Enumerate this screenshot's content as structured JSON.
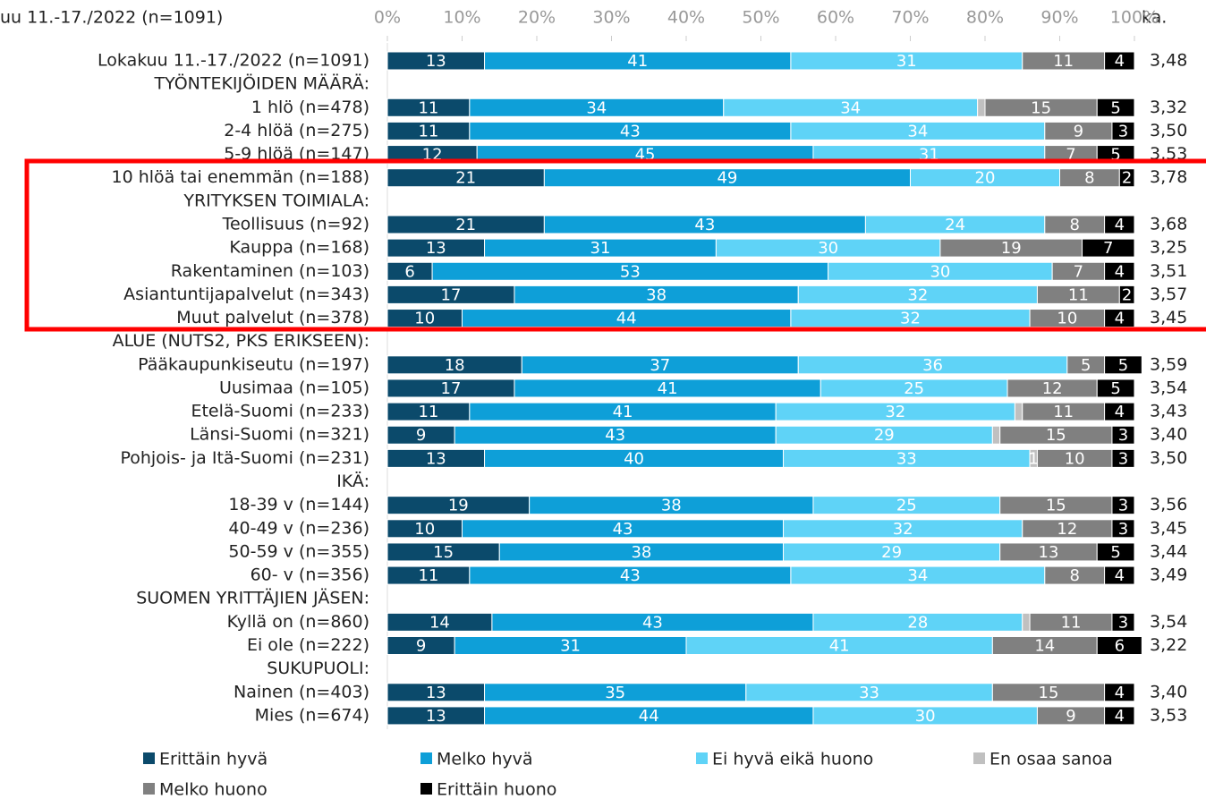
{
  "chart_data": {
    "type": "stacked-bar-horizontal",
    "title": "uu 11.-17./2022 (n=1091)",
    "categories": [
      "Lokakuu 11.-17./2022 (n=1091)",
      "TYÖNTEKIJÖIDEN MÄÄRÄ:",
      "1 hlö (n=478)",
      "2-4 hlöä (n=275)",
      "5-9 hlöä (n=147)",
      "10 hlöä tai enemmän (n=188)",
      "YRITYKSEN TOIMIALA:",
      "Teollisuus (n=92)",
      "Kauppa (n=168)",
      "Rakentaminen (n=103)",
      "Asiantuntijapalvelut (n=343)",
      "Muut palvelut (n=378)",
      "ALUE (NUTS2, PKS ERIKSEEN):",
      "Pääkaupunkiseutu (n=197)",
      "Uusimaa (n=105)",
      "Etelä-Suomi (n=233)",
      "Länsi-Suomi (n=321)",
      "Pohjois- ja Itä-Suomi (n=231)",
      "IKÄ:",
      "18-39 v (n=144)",
      "40-49 v (n=236)",
      "50-59 v (n=355)",
      "60- v (n=356)",
      "SUOMEN YRITTÄJIEN JÄSEN:",
      "Kyllä on (n=860)",
      "Ei ole (n=222)",
      "SUKUPUOLI:",
      "Nainen (n=403)",
      "Mies (n=674)"
    ],
    "series": [
      {
        "name": "Erittäin hyvä",
        "color": "#0b4a6b",
        "values": [
          13,
          null,
          11,
          11,
          12,
          21,
          null,
          21,
          13,
          6,
          17,
          10,
          null,
          18,
          17,
          11,
          9,
          13,
          null,
          19,
          10,
          15,
          11,
          null,
          14,
          9,
          null,
          13,
          13
        ]
      },
      {
        "name": "Melko hyvä",
        "color": "#0e9fd8",
        "values": [
          41,
          null,
          34,
          43,
          45,
          49,
          null,
          43,
          31,
          53,
          38,
          44,
          null,
          37,
          41,
          41,
          43,
          40,
          null,
          38,
          43,
          38,
          43,
          null,
          43,
          31,
          null,
          35,
          44
        ]
      },
      {
        "name": "Ei hyvä eikä huono",
        "color": "#5fd3f7",
        "values": [
          31,
          null,
          34,
          34,
          31,
          20,
          null,
          24,
          30,
          30,
          32,
          32,
          null,
          36,
          25,
          32,
          29,
          33,
          null,
          25,
          32,
          29,
          34,
          null,
          28,
          41,
          null,
          33,
          30
        ]
      },
      {
        "name": "En osaa sanoa",
        "color": "#c0c0c0",
        "values": [
          0,
          null,
          1,
          0,
          0,
          0,
          null,
          0,
          0,
          0,
          0,
          0,
          null,
          0,
          0,
          1,
          1,
          1,
          null,
          0,
          0,
          0,
          0,
          null,
          1,
          0,
          null,
          0,
          0
        ],
        "value_labels": [
          null,
          null,
          null,
          null,
          null,
          null,
          null,
          null,
          null,
          null,
          null,
          null,
          null,
          null,
          null,
          null,
          null,
          "1",
          null,
          null,
          null,
          null,
          null,
          null,
          null,
          null,
          null,
          null,
          null
        ]
      },
      {
        "name": "Melko huono",
        "color": "#808080",
        "values": [
          11,
          null,
          15,
          9,
          7,
          8,
          null,
          8,
          19,
          7,
          11,
          10,
          null,
          5,
          12,
          11,
          15,
          10,
          null,
          15,
          12,
          13,
          8,
          null,
          11,
          14,
          null,
          15,
          9
        ]
      },
      {
        "name": "Erittäin huono",
        "color": "#000000",
        "values": [
          4,
          null,
          5,
          3,
          5,
          2,
          null,
          4,
          7,
          4,
          2,
          4,
          null,
          5,
          5,
          4,
          3,
          3,
          null,
          3,
          3,
          5,
          4,
          null,
          3,
          6,
          null,
          4,
          4
        ]
      }
    ],
    "mean": {
      "name": "ka.",
      "values": [
        3.48,
        null,
        3.32,
        3.5,
        3.53,
        3.78,
        null,
        3.68,
        3.25,
        3.51,
        3.57,
        3.45,
        null,
        3.59,
        3.54,
        3.43,
        3.4,
        3.5,
        null,
        3.56,
        3.45,
        3.44,
        3.49,
        null,
        3.54,
        3.22,
        null,
        3.4,
        3.53
      ],
      "value_labels": [
        "3,48",
        null,
        "3,32",
        "3,50",
        "3,53",
        "3,78",
        null,
        "3,68",
        "3,25",
        "3,51",
        "3,57",
        "3,45",
        null,
        "3,59",
        "3,54",
        "3,43",
        "3,40",
        "3,50",
        null,
        "3,56",
        "3,45",
        "3,44",
        "3,49",
        null,
        "3,54",
        "3,22",
        null,
        "3,40",
        "3,53"
      ]
    },
    "xlim": [
      0,
      100
    ],
    "xticks": [
      {
        "value": 0,
        "label": "0%"
      },
      {
        "value": 10,
        "label": "10%"
      },
      {
        "value": 20,
        "label": "20%"
      },
      {
        "value": 30,
        "label": "30%"
      },
      {
        "value": 40,
        "label": "40%"
      },
      {
        "value": 50,
        "label": "50%"
      },
      {
        "value": 60,
        "label": "60%"
      },
      {
        "value": 70,
        "label": "70%"
      },
      {
        "value": 80,
        "label": "80%"
      },
      {
        "value": 90,
        "label": "90%"
      },
      {
        "value": 100,
        "label": "100%"
      }
    ],
    "grid": false,
    "legend": "bottom"
  }
}
